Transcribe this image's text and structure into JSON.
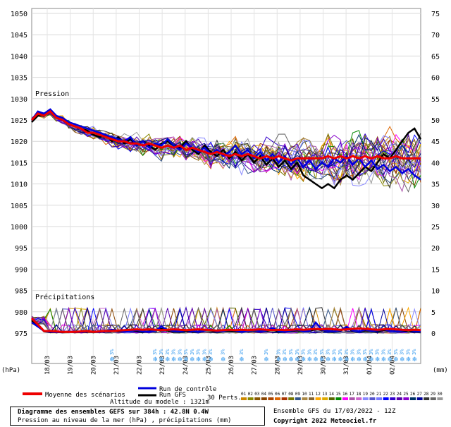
{
  "chart_data": {
    "type": "line",
    "pressure_axis": {
      "ticks": [
        1050,
        1045,
        1040,
        1035,
        1030,
        1025,
        1020,
        1015,
        1010,
        1005,
        1000,
        995,
        990,
        985,
        980,
        975
      ],
      "unit": "(hPa)"
    },
    "precip_axis": {
      "ticks": [
        75,
        70,
        65,
        60,
        55,
        50,
        45,
        40,
        35,
        30,
        25,
        20,
        15,
        10,
        5,
        0
      ],
      "unit": "(mm)"
    },
    "x_ticks": [
      "18/03",
      "19/03",
      "20/03",
      "21/03",
      "22/03",
      "23/03",
      "24/03",
      "25/03",
      "26/03",
      "27/03",
      "28/03",
      "29/03",
      "30/03",
      "31/03",
      "01/04",
      "02/04"
    ],
    "panel_labels": {
      "pressure": "Pression",
      "precip": "Précipitations"
    },
    "series": [
      {
        "name": "Moyenne des scénarios",
        "color": "#ee0000",
        "pressure": [
          1025.0,
          1026.5,
          1026.0,
          1027.0,
          1025.5,
          1025.0,
          1024.0,
          1023.5,
          1023.0,
          1022.0,
          1022.0,
          1021.5,
          1021.0,
          1020.5,
          1020.0,
          1020.0,
          1019.5,
          1019.5,
          1019.0,
          1019.5,
          1019.0,
          1018.5,
          1019.0,
          1018.5,
          1019.0,
          1018.0,
          1018.5,
          1018.0,
          1017.5,
          1017.0,
          1017.5,
          1017.0,
          1016.5,
          1017.0,
          1016.5,
          1017.0,
          1016.5,
          1016.0,
          1016.5,
          1016.0,
          1016.5,
          1016.0,
          1015.5,
          1016.0,
          1016.0,
          1016.0,
          1016.0,
          1016.0,
          1016.5,
          1016.0,
          1016.5,
          1016.0,
          1016.5,
          1016.0,
          1016.5,
          1016.0,
          1016.5,
          1016.0,
          1016.0,
          1016.5,
          1016.0,
          1016.0,
          1016.0,
          1016.0
        ],
        "precip": [
          3.5,
          2.0,
          0.5,
          0.5,
          0.4,
          0.3,
          0.3,
          0.3,
          0.4,
          0.5,
          0.3,
          0.4,
          0.5,
          0.5,
          0.6,
          0.7,
          0.8,
          0.9,
          0.8,
          0.9,
          0.8,
          0.7,
          0.8,
          0.9,
          0.8,
          0.7,
          0.8,
          0.9,
          0.8,
          0.7,
          0.6,
          0.7,
          0.8,
          0.7,
          0.8,
          0.7,
          0.8,
          0.9,
          0.8,
          0.7,
          0.8,
          0.7,
          0.8,
          0.9,
          0.8,
          0.9,
          1.0,
          0.9,
          1.0,
          0.9,
          0.8,
          0.9,
          1.0,
          1.1,
          1.0,
          0.9,
          0.8,
          0.9,
          1.0,
          0.9,
          0.8,
          0.7,
          0.8,
          0.7
        ]
      },
      {
        "name": "Run de contrôle",
        "color": "#0000dd",
        "pressure": [
          1025.0,
          1027.0,
          1026.5,
          1027.5,
          1026.0,
          1025.5,
          1024.5,
          1024.0,
          1023.5,
          1023.0,
          1022.5,
          1022.0,
          1021.5,
          1021.0,
          1020.5,
          1020.0,
          1021.0,
          1019.0,
          1020.0,
          1018.5,
          1019.5,
          1019.0,
          1020.5,
          1019.0,
          1018.0,
          1019.5,
          1018.5,
          1017.5,
          1018.5,
          1017.0,
          1018.0,
          1016.5,
          1017.5,
          1019.0,
          1017.0,
          1018.0,
          1016.0,
          1017.5,
          1015.5,
          1017.0,
          1015.0,
          1016.5,
          1014.5,
          1016.0,
          1014.0,
          1015.5,
          1013.5,
          1015.0,
          1014.0,
          1016.0,
          1015.0,
          1016.5,
          1014.5,
          1016.0,
          1014.0,
          1015.5,
          1013.5,
          1014.5,
          1013.0,
          1014.0,
          1012.5,
          1013.5,
          1012.0,
          1011.0
        ],
        "precip": [
          2.5,
          1.5,
          0.5,
          0.3,
          0.2,
          0.3,
          0.4,
          0.3,
          0.2,
          0.4,
          0.3,
          0.2,
          0.5,
          0.8,
          0.6,
          0.3,
          0.5,
          0.7,
          0.4,
          0.3,
          0.6,
          1.5,
          0.8,
          0.5,
          0.4,
          0.7,
          0.5,
          0.3,
          0.6,
          0.9,
          0.4,
          0.5,
          0.8,
          0.6,
          0.3,
          0.5,
          0.7,
          0.4,
          0.6,
          1.2,
          0.5,
          0.3,
          0.6,
          0.8,
          0.4,
          0.5,
          2.5,
          0.8,
          0.5,
          0.4,
          0.7,
          1.5,
          0.6,
          0.4,
          0.8,
          0.5,
          0.6,
          0.9,
          0.5,
          0.4,
          0.6,
          0.8,
          0.5,
          0.4
        ]
      },
      {
        "name": "Run GFS",
        "color": "#000000",
        "pressure": [
          1024.5,
          1026.0,
          1026.0,
          1027.0,
          1025.5,
          1025.0,
          1024.0,
          1023.5,
          1023.0,
          1022.5,
          1021.5,
          1021.0,
          1021.5,
          1020.0,
          1021.0,
          1019.5,
          1020.5,
          1019.0,
          1020.0,
          1019.0,
          1018.0,
          1019.5,
          1020.0,
          1019.0,
          1018.5,
          1020.0,
          1018.0,
          1017.0,
          1019.0,
          1017.5,
          1016.5,
          1018.0,
          1016.0,
          1017.5,
          1015.5,
          1017.0,
          1015.0,
          1016.5,
          1014.5,
          1016.0,
          1014.0,
          1015.5,
          1013.5,
          1015.0,
          1012.0,
          1011.0,
          1010.0,
          1009.0,
          1010.0,
          1009.0,
          1011.0,
          1012.0,
          1011.0,
          1012.5,
          1014.0,
          1013.0,
          1015.0,
          1017.0,
          1016.0,
          1018.0,
          1020.0,
          1022.0,
          1023.0,
          1020.5
        ],
        "precip": [
          3.0,
          1.8,
          0.4,
          0.2,
          0.3,
          0.2,
          0.4,
          0.3,
          0.2,
          0.3,
          0.4,
          0.3,
          0.5,
          0.6,
          0.4,
          0.3,
          0.6,
          0.5,
          0.3,
          0.4,
          0.7,
          1.0,
          0.6,
          0.4,
          0.3,
          0.5,
          0.4,
          0.3,
          0.7,
          0.6,
          0.4,
          0.5,
          0.6,
          0.4,
          0.3,
          0.5,
          0.6,
          0.4,
          0.5,
          0.8,
          0.4,
          0.3,
          0.5,
          0.6,
          0.4,
          0.5,
          0.9,
          0.7,
          0.5,
          0.4,
          0.6,
          1.2,
          0.5,
          0.4,
          0.6,
          0.5,
          0.4,
          0.7,
          0.5,
          0.4,
          0.5,
          0.6,
          0.4,
          0.3
        ]
      }
    ],
    "perturbation_count": 30,
    "perturbation_pressure_bands": {
      "mean_ref": "Moyenne des scénarios",
      "spread_start": 0.6,
      "spread_end": 9.0
    },
    "snow_markers": {
      "symbol": "❄",
      "label": "3%",
      "positions": [
        13,
        20,
        21,
        22,
        23,
        24,
        25,
        26,
        27,
        28,
        29,
        31,
        34,
        38,
        40,
        41,
        42,
        43,
        44,
        45,
        46,
        47,
        48,
        49,
        50,
        51,
        52,
        53,
        54,
        55,
        56,
        57,
        58,
        59,
        60,
        61,
        62
      ]
    },
    "legend": {
      "mean": "Moyenne des scénarios",
      "control": "Run de contrôle",
      "gfs": "Run GFS",
      "perts": "30 Perts.",
      "pert_numbers": [
        "01",
        "02",
        "03",
        "04",
        "05",
        "06",
        "07",
        "08",
        "09",
        "10",
        "11",
        "12",
        "13",
        "14",
        "15",
        "16",
        "17",
        "18",
        "19",
        "20",
        "21",
        "22",
        "23",
        "24",
        "25",
        "26",
        "27",
        "28",
        "29",
        "30"
      ],
      "pert_colors": [
        "#cc8800",
        "#888800",
        "#885500",
        "#884400",
        "#aa4400",
        "#dd6600",
        "#aa3300",
        "#777700",
        "#335588",
        "#aa8844",
        "#886633",
        "#ffaa00",
        "#ddaa00",
        "#556600",
        "#008800",
        "#ff00ff",
        "#aa55aa",
        "#cc66cc",
        "#8888ff",
        "#5555cc",
        "#7777ff",
        "#0000ff",
        "#3300cc",
        "#5500aa",
        "#8800cc",
        "#003366",
        "#000099",
        "#333333",
        "#666666",
        "#999999"
      ]
    },
    "altitude_text": "Altitude du modele : 1321m"
  },
  "footer": {
    "title": "Diagramme des ensembles GEFS sur 384h : 42.8N 0.4W",
    "subtitle": "Pression au niveau de la mer (hPa) , précipitations (mm)",
    "ensemble_run": "Ensemble GFS du 17/03/2022 - 12Z",
    "copyright": "Copyright 2022 Meteociel.fr"
  }
}
